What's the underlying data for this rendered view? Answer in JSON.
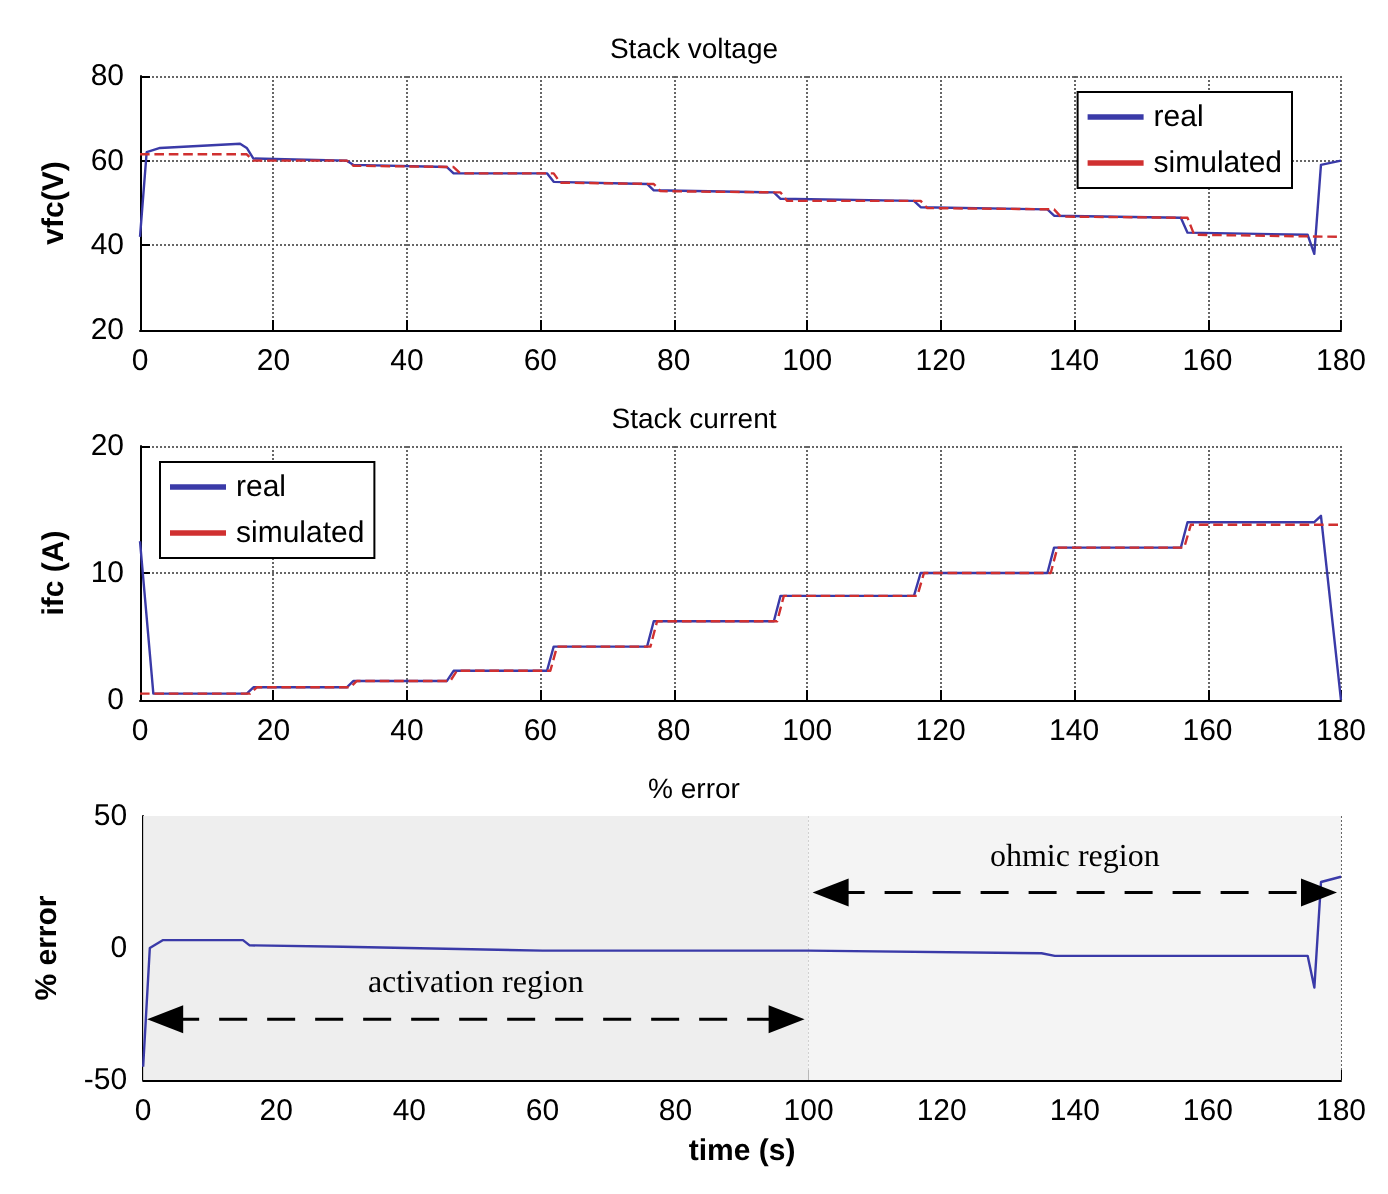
{
  "chart_data": [
    {
      "type": "line",
      "title": "Stack voltage",
      "ylabel": "vfc(V)",
      "xlim": [
        0,
        180
      ],
      "xticks": [
        0,
        20,
        40,
        60,
        80,
        100,
        120,
        140,
        160,
        180
      ],
      "ylim": [
        20,
        80
      ],
      "yticks": [
        20,
        40,
        60,
        80
      ],
      "grid": true,
      "legend": "top right",
      "line_style": "solid",
      "series": [
        {
          "name": "real",
          "color": "#3a3aa8",
          "x": [
            0,
            1,
            3,
            15,
            16,
            17,
            31,
            32,
            46,
            47,
            61,
            62,
            76,
            77,
            95,
            96,
            116,
            117,
            136,
            137,
            156,
            157,
            175,
            176,
            177,
            180
          ],
          "values": [
            42,
            62,
            63,
            64,
            63,
            60.5,
            60,
            59,
            58.5,
            57,
            57,
            55,
            54.5,
            53,
            52.5,
            51,
            50.5,
            49,
            48.5,
            47,
            46.5,
            43,
            42.5,
            38,
            59,
            60
          ]
        },
        {
          "name": "simulated",
          "color": "#d03030",
          "line_style": "dashed",
          "x": [
            0,
            16,
            17,
            31,
            32,
            47,
            48,
            62,
            63,
            77,
            78,
            96,
            97,
            117,
            118,
            137,
            138,
            157,
            158,
            180
          ],
          "values": [
            61.5,
            61.5,
            60,
            60,
            58.8,
            58.5,
            57,
            57,
            54.8,
            54.5,
            52.8,
            52.5,
            50.5,
            50.5,
            48.8,
            48.5,
            46.8,
            46.5,
            42.5,
            42
          ]
        }
      ]
    },
    {
      "type": "line",
      "title": "Stack current",
      "ylabel": "ifc (A)",
      "xlim": [
        0,
        180
      ],
      "xticks": [
        0,
        20,
        40,
        60,
        80,
        100,
        120,
        140,
        160,
        180
      ],
      "ylim": [
        0,
        20
      ],
      "yticks": [
        0,
        10,
        20
      ],
      "grid": true,
      "legend": "top left",
      "line_style": "solid",
      "series": [
        {
          "name": "real",
          "color": "#3a3aa8",
          "x": [
            0,
            2,
            16,
            17,
            31,
            32,
            46,
            47,
            61,
            62,
            76,
            77,
            95,
            96,
            116,
            117,
            136,
            137,
            156,
            157,
            176,
            177,
            180
          ],
          "values": [
            12.5,
            0.5,
            0.5,
            1,
            1,
            1.5,
            1.5,
            2.3,
            2.3,
            4.2,
            4.2,
            6.2,
            6.2,
            8.2,
            8.2,
            10,
            10,
            12,
            12,
            14,
            14,
            14.5,
            0
          ]
        },
        {
          "name": "simulated",
          "color": "#d03030",
          "line_style": "dashed",
          "x": [
            0,
            16.5,
            17.5,
            31.5,
            32.5,
            46.5,
            47.5,
            61.5,
            62.5,
            76.5,
            77.5,
            95.5,
            96.5,
            116.5,
            117.5,
            136.5,
            137.5,
            156.5,
            157.5,
            180
          ],
          "values": [
            0.5,
            0.5,
            1,
            1,
            1.5,
            1.5,
            2.3,
            2.3,
            4.2,
            4.2,
            6.2,
            6.2,
            8.2,
            8.2,
            10,
            10,
            12,
            12,
            13.8,
            13.8
          ]
        }
      ]
    },
    {
      "type": "line",
      "title": "% error",
      "xlabel": "time (s)",
      "ylabel": "% error",
      "xlim": [
        0,
        180
      ],
      "xticks": [
        0,
        20,
        40,
        60,
        80,
        100,
        120,
        140,
        160,
        180
      ],
      "ylim": [
        -50,
        50
      ],
      "yticks": [
        -50,
        0,
        50
      ],
      "grid": true,
      "line_style": "solid",
      "bands": [
        {
          "axis": "x",
          "from": 0,
          "to": 100,
          "label": "activation region",
          "color": "#eeeeee"
        },
        {
          "axis": "x",
          "from": 100,
          "to": 180,
          "label": "ohmic region",
          "color": "#f4f4f4"
        }
      ],
      "series": [
        {
          "color": "#3a3aa8",
          "x": [
            0,
            1,
            3,
            15,
            16,
            30,
            60,
            100,
            135,
            137,
            175,
            176,
            177,
            180
          ],
          "values": [
            -45,
            0,
            3,
            3,
            1,
            0.5,
            -1,
            -1,
            -2,
            -3,
            -3,
            -15,
            25,
            27
          ]
        }
      ]
    }
  ]
}
